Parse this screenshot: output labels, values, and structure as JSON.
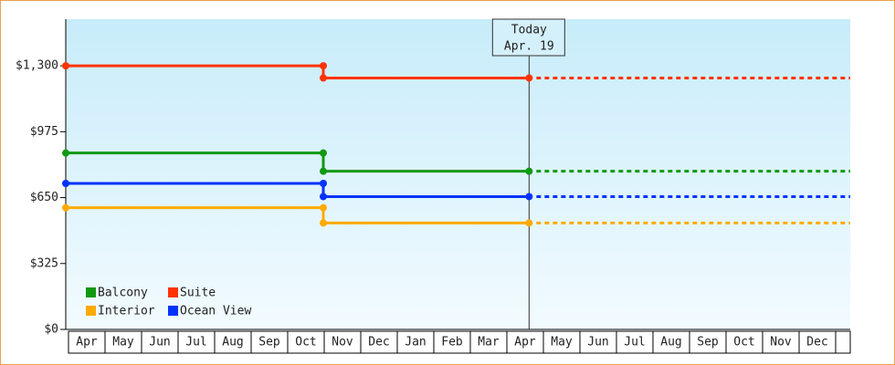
{
  "chart_data": {
    "type": "step-line",
    "categories": [
      "Apr",
      "May",
      "Jun",
      "Jul",
      "Aug",
      "Sep",
      "Oct",
      "Nov",
      "Dec",
      "Jan",
      "Feb",
      "Mar",
      "Apr",
      "May",
      "Jun",
      "Jul",
      "Aug",
      "Sep",
      "Oct",
      "Nov",
      "Dec"
    ],
    "series": [
      {
        "name": "Balcony",
        "color": "#119911",
        "values": [
          870,
          870,
          870,
          870,
          870,
          870,
          870,
          780,
          780,
          780,
          780,
          780,
          780,
          null,
          null,
          null,
          null,
          null,
          null,
          null,
          null
        ]
      },
      {
        "name": "Suite",
        "color": "#ff3300",
        "values": [
          1300,
          1300,
          1300,
          1300,
          1300,
          1300,
          1300,
          1240,
          1240,
          1240,
          1240,
          1240,
          1240,
          null,
          null,
          null,
          null,
          null,
          null,
          null,
          null
        ]
      },
      {
        "name": "Interior",
        "color": "#ffaa00",
        "values": [
          600,
          600,
          600,
          600,
          600,
          600,
          600,
          525,
          525,
          525,
          525,
          525,
          525,
          null,
          null,
          null,
          null,
          null,
          null,
          null,
          null
        ]
      },
      {
        "name": "Ocean View",
        "color": "#0033ff",
        "values": [
          720,
          720,
          720,
          720,
          720,
          720,
          720,
          655,
          655,
          655,
          655,
          655,
          655,
          null,
          null,
          null,
          null,
          null,
          null,
          null,
          null
        ]
      }
    ],
    "ylim": [
      0,
      1530
    ],
    "yticks": [
      {
        "value": 0,
        "label": "$0"
      },
      {
        "value": 325,
        "label": "$325"
      },
      {
        "value": 650,
        "label": "$650"
      },
      {
        "value": 975,
        "label": "$975"
      },
      {
        "value": 1300,
        "label": "$1,300"
      }
    ],
    "today": {
      "label": "Today",
      "date": "Apr. 19"
    },
    "legend": "bottom-left"
  }
}
